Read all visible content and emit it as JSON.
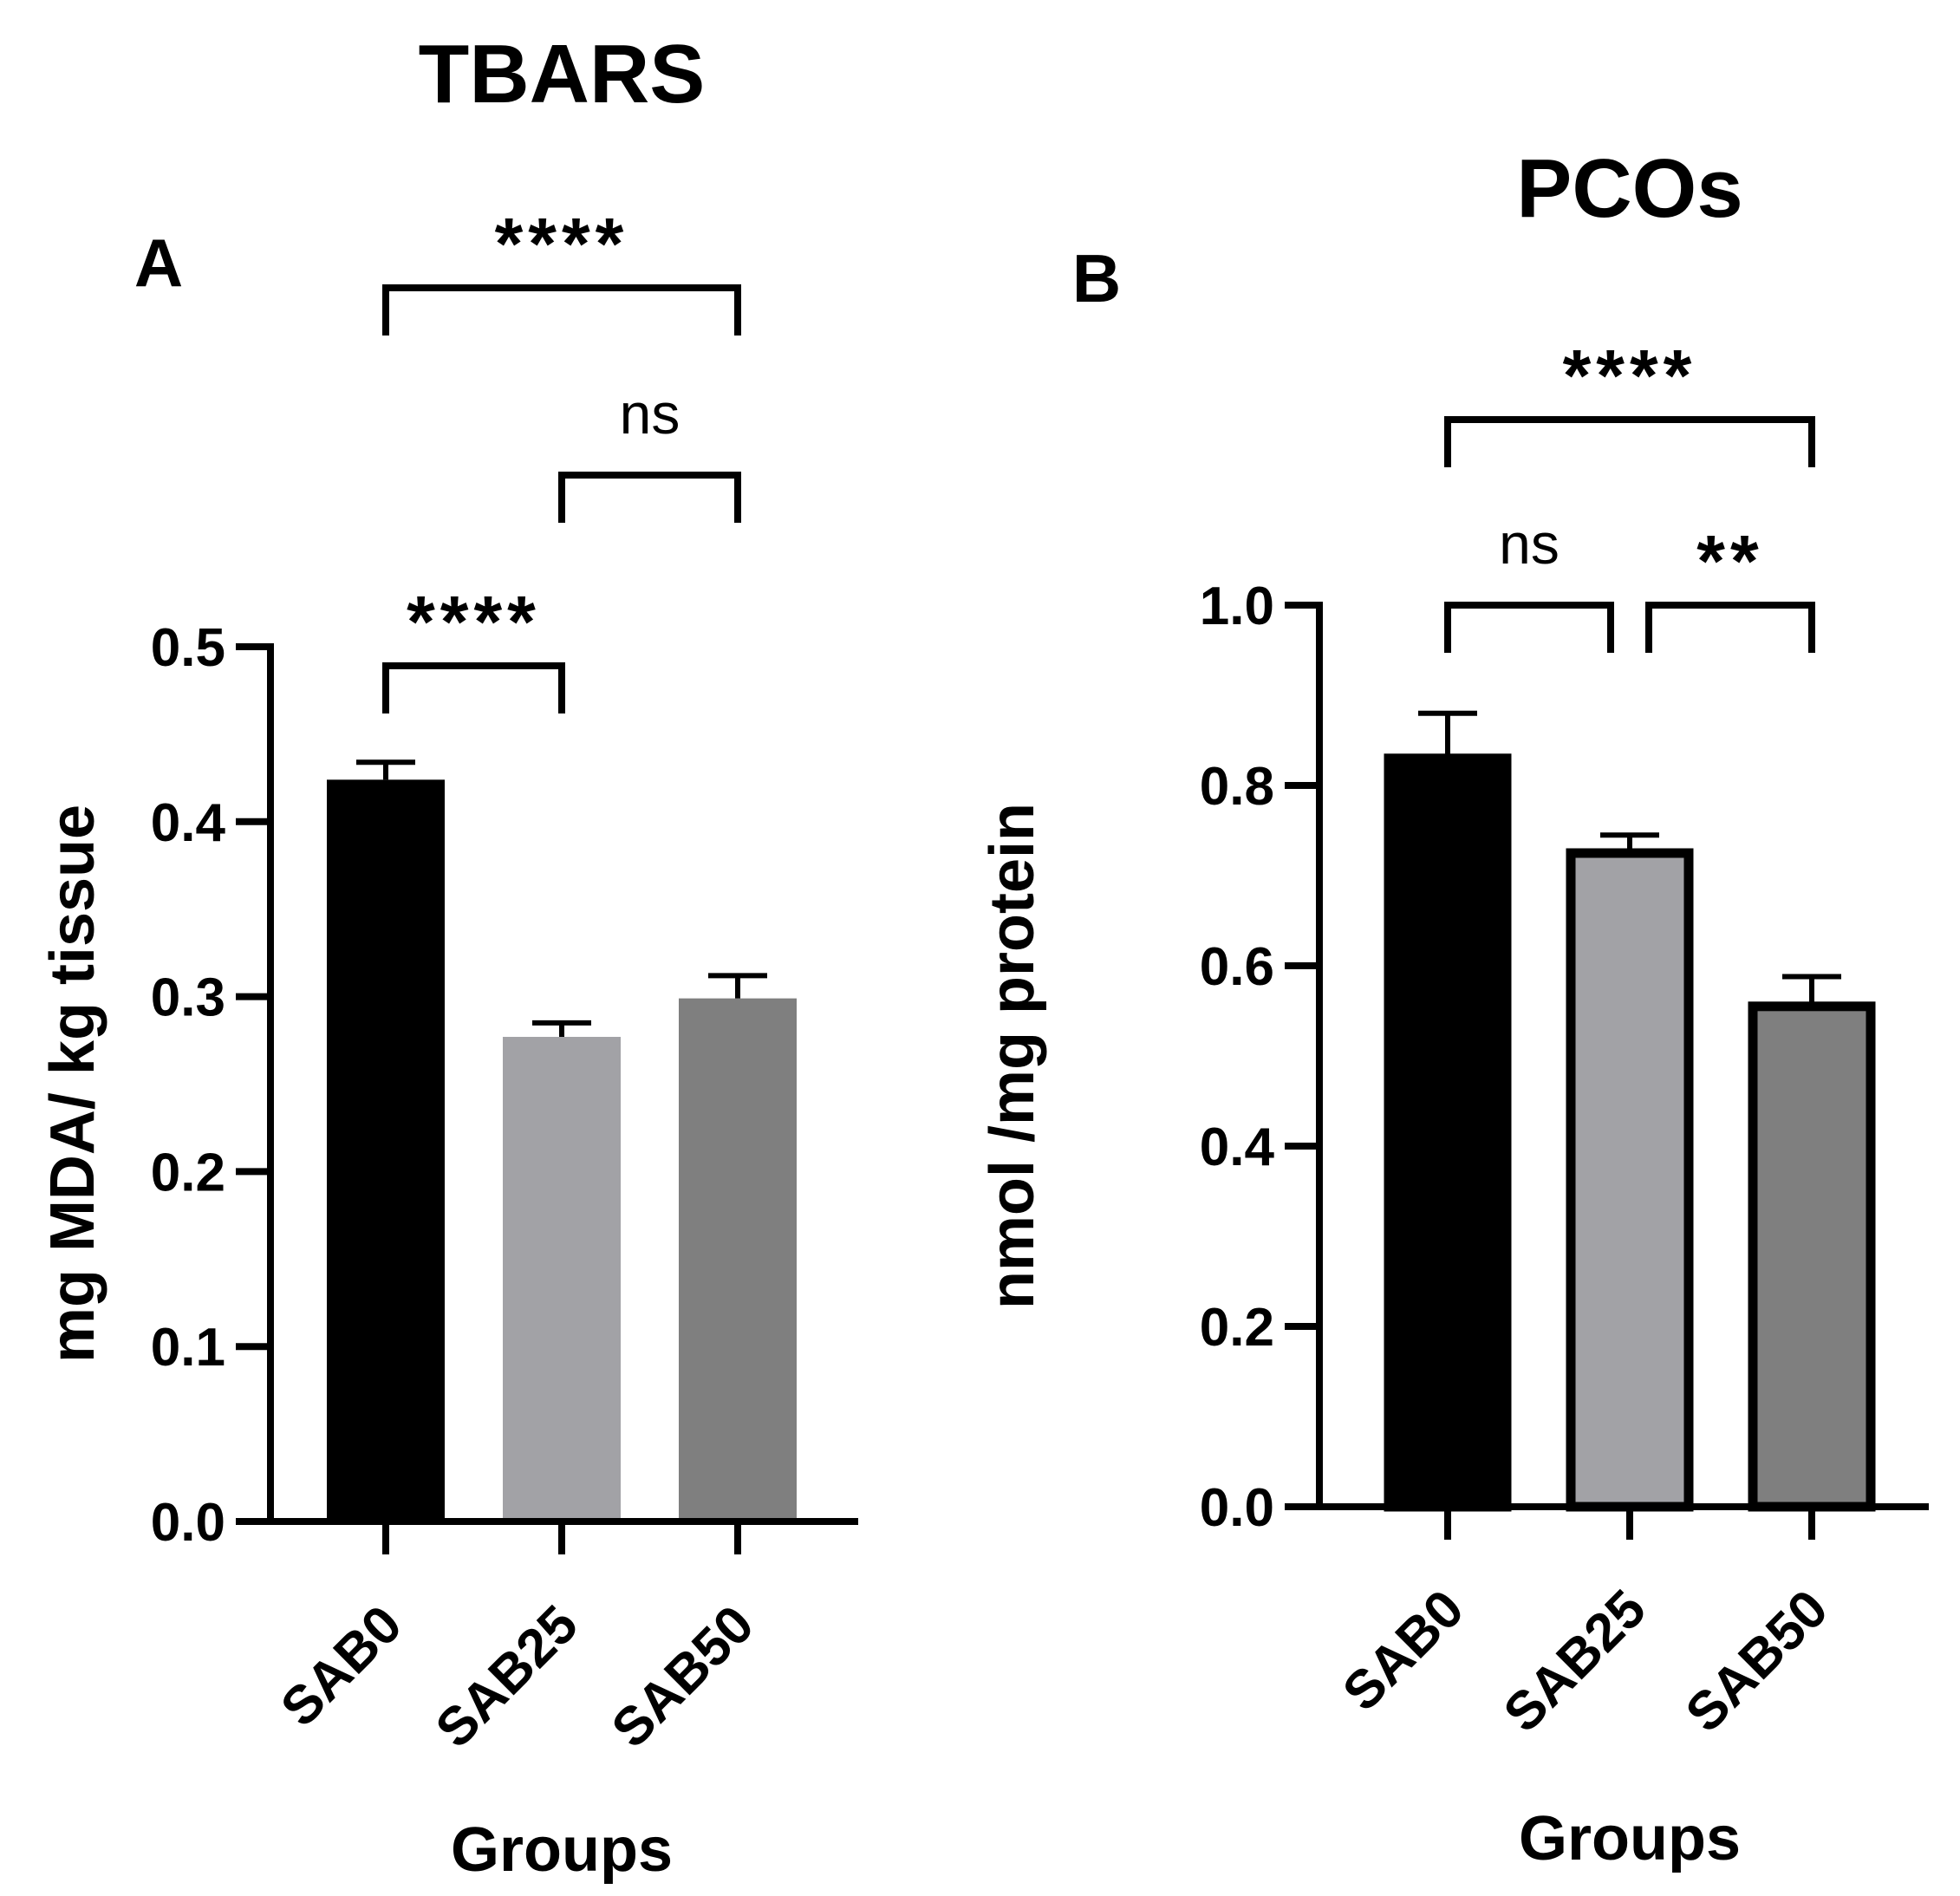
{
  "chart_data": [
    {
      "type": "bar",
      "panel": "A",
      "title": "TBARS",
      "xlabel": "Groups",
      "ylabel": "mg MDA/ kg tissue",
      "categories": [
        "SAB0",
        "SAB25",
        "SAB50"
      ],
      "values": [
        0.424,
        0.277,
        0.299
      ],
      "errors": [
        0.01,
        0.008,
        0.013
      ],
      "colors": [
        "#000000",
        "#a2a2a6",
        "#7f7f7f"
      ],
      "ylim": [
        0,
        0.5
      ],
      "yticks": [
        0.0,
        0.1,
        0.2,
        0.3,
        0.4,
        0.5
      ],
      "ytick_labels": [
        "0.0",
        "0.1",
        "0.2",
        "0.3",
        "0.4",
        "0.5"
      ],
      "bar_outline": false,
      "comparisons": [
        {
          "from": 0,
          "to": 1,
          "label": "****"
        },
        {
          "from": 1,
          "to": 2,
          "label": "ns"
        },
        {
          "from": 0,
          "to": 2,
          "label": "****"
        }
      ]
    },
    {
      "type": "bar",
      "panel": "B",
      "title": "PCOs",
      "xlabel": "Groups",
      "ylabel": "nmol /mg protein",
      "categories": [
        "SAB0",
        "SAB25",
        "SAB50"
      ],
      "values": [
        0.83,
        0.725,
        0.555
      ],
      "errors": [
        0.05,
        0.02,
        0.033
      ],
      "colors": [
        "#000000",
        "#a2a2a6",
        "#7f7f7f"
      ],
      "ylim": [
        0,
        1.0
      ],
      "yticks": [
        0.0,
        0.2,
        0.4,
        0.6,
        0.8,
        1.0
      ],
      "ytick_labels": [
        "0.0",
        "0.2",
        "0.4",
        "0.6",
        "0.8",
        "1.0"
      ],
      "bar_outline": true,
      "comparisons": [
        {
          "from": 0,
          "to": 1,
          "label": "ns"
        },
        {
          "from": 1,
          "to": 2,
          "label": "**"
        },
        {
          "from": 0,
          "to": 2,
          "label": "****"
        }
      ]
    }
  ]
}
